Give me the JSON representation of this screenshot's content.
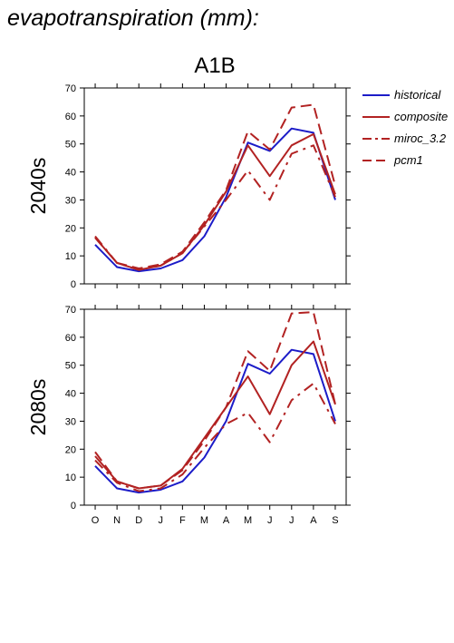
{
  "page": {
    "title": "evapotranspiration (mm):",
    "scenario": "A1B"
  },
  "colors": {
    "historical": "#1c1cc8",
    "red": "#b22222",
    "axis": "#000000"
  },
  "chart_data": [
    {
      "type": "line",
      "panel_label": "2040s",
      "title": "A1B",
      "categories": [
        "O",
        "N",
        "D",
        "J",
        "F",
        "M",
        "A",
        "M",
        "J",
        "J",
        "A",
        "S"
      ],
      "ylim": [
        0,
        70
      ],
      "yticks": [
        0,
        10,
        20,
        30,
        40,
        50,
        60,
        70
      ],
      "legend_position": "right",
      "series": [
        {
          "name": "historical",
          "color": "#1c1cc8",
          "dash": "solid",
          "values": [
            14,
            6,
            4.5,
            5.5,
            8.5,
            17,
            31,
            50.5,
            47.5,
            55.5,
            54,
            30
          ]
        },
        {
          "name": "composite",
          "color": "#b22222",
          "dash": "solid",
          "values": [
            16.5,
            7.5,
            5,
            6.5,
            11,
            21,
            33,
            49.5,
            38.5,
            49.5,
            53.5,
            32
          ]
        },
        {
          "name": "miroc_3.2",
          "color": "#b22222",
          "dash": "dashdot",
          "values": [
            17,
            7.5,
            5,
            6.5,
            11,
            20.5,
            30,
            40.5,
            30,
            46.5,
            49.5,
            31
          ]
        },
        {
          "name": "pcm1",
          "color": "#b22222",
          "dash": "dash",
          "values": [
            16.5,
            7.5,
            5.5,
            7,
            11.5,
            22,
            33.5,
            54.5,
            48,
            63,
            64,
            35
          ]
        }
      ]
    },
    {
      "type": "line",
      "panel_label": "2080s",
      "categories": [
        "O",
        "N",
        "D",
        "J",
        "F",
        "M",
        "A",
        "M",
        "J",
        "J",
        "A",
        "S"
      ],
      "ylim": [
        0,
        70
      ],
      "yticks": [
        0,
        10,
        20,
        30,
        40,
        50,
        60,
        70
      ],
      "series": [
        {
          "name": "historical",
          "color": "#1c1cc8",
          "dash": "solid",
          "values": [
            14,
            6,
            4.5,
            5.5,
            8.5,
            17,
            30,
            50.5,
            47,
            55.5,
            54,
            30
          ]
        },
        {
          "name": "composite",
          "color": "#b22222",
          "dash": "solid",
          "values": [
            17.5,
            8.5,
            6,
            7,
            13,
            24,
            35,
            46,
            32.5,
            50,
            58.5,
            36
          ]
        },
        {
          "name": "miroc_3.2",
          "color": "#b22222",
          "dash": "dashdot",
          "values": [
            16,
            8,
            5,
            6,
            11,
            20.5,
            29,
            33,
            22.5,
            37.5,
            43.5,
            29
          ]
        },
        {
          "name": "pcm1",
          "color": "#b22222",
          "dash": "dash",
          "values": [
            19,
            8.5,
            6,
            7,
            12.5,
            23,
            35,
            55,
            48,
            68.5,
            69,
            36
          ]
        }
      ]
    }
  ]
}
